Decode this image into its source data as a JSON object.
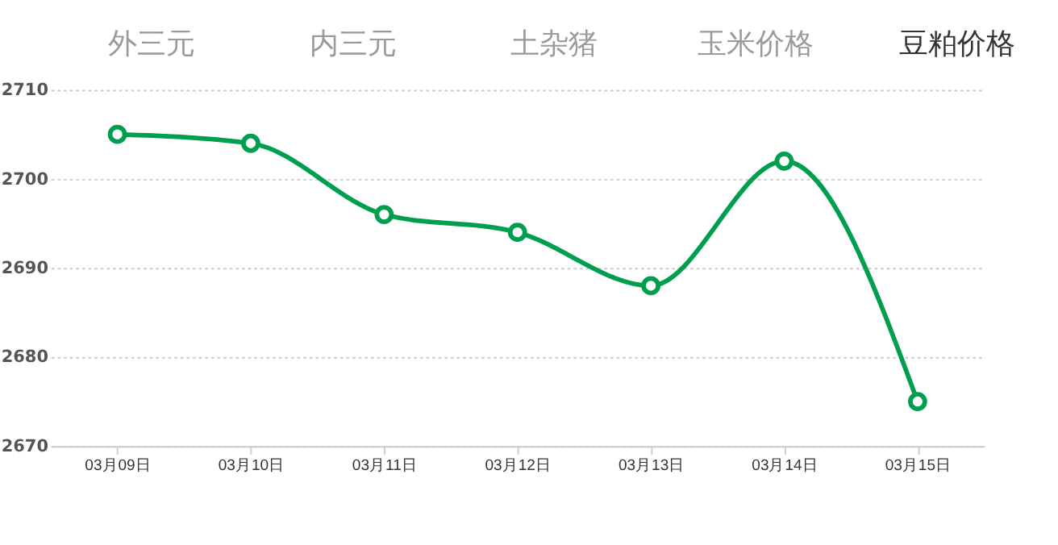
{
  "chart_data": {
    "type": "line",
    "annotations": [
      "外三元",
      "内三元",
      "土杂猪",
      "玉米价格",
      "豆粕价格"
    ],
    "categories": [
      "03月09日",
      "03月10日",
      "03月11日",
      "03月12日",
      "03月13日",
      "03月14日",
      "03月15日"
    ],
    "series": [
      {
        "color": "#009e4f",
        "values": [
          2705,
          2704,
          2696,
          2694,
          2688,
          2702,
          2675
        ]
      }
    ],
    "ylim": [
      2670,
      2710
    ],
    "yticks": [
      2670,
      2680,
      2690,
      2700,
      2710
    ],
    "grid": "y",
    "marker": "circle",
    "line_style": "solid"
  }
}
